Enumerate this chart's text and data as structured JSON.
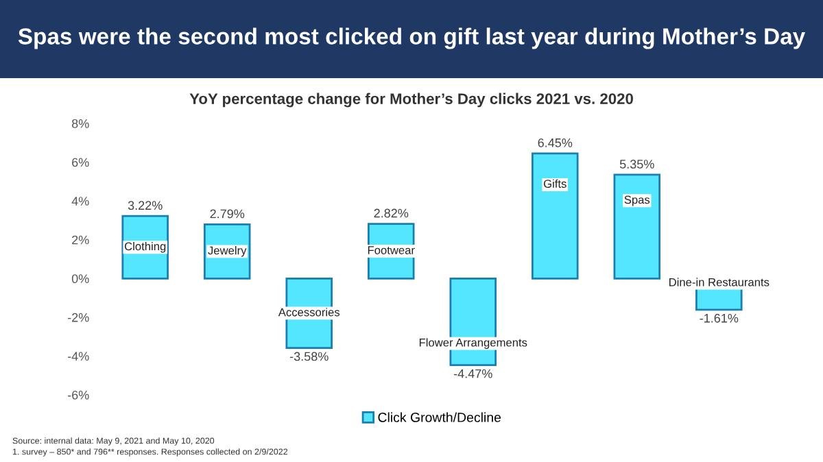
{
  "chart_data": {
    "type": "bar",
    "title": "Spas were the second most clicked on gift last year during Mother’s Day",
    "subtitle": "YoY percentage change for Mother’s Day clicks 2021 vs. 2020",
    "categories": [
      "Clothing",
      "Jewelry",
      "Accessories",
      "Footwear",
      "Flower Arrangements",
      "Gifts",
      "Spas",
      "Dine-in Restaurants"
    ],
    "series": [
      {
        "name": "Click Growth/Decline",
        "color": "#55e6ff",
        "values": [
          3.22,
          2.79,
          -3.58,
          2.82,
          -4.47,
          6.45,
          5.35,
          -1.61
        ],
        "value_labels": [
          "3.22%",
          "2.79%",
          "-3.58%",
          "2.82%",
          "-4.47%",
          "6.45%",
          "5.35%",
          "-1.61%"
        ]
      }
    ],
    "ylim": [
      -6,
      8
    ],
    "yticks": [
      {
        "value": -6,
        "label": "-6%"
      },
      {
        "value": -4,
        "label": "-4%"
      },
      {
        "value": -2,
        "label": "-2%"
      },
      {
        "value": 0,
        "label": "0%"
      },
      {
        "value": 2,
        "label": "2%"
      },
      {
        "value": 4,
        "label": "4%"
      },
      {
        "value": 6,
        "label": "6%"
      },
      {
        "value": 8,
        "label": "8%"
      }
    ],
    "tick_labels": "y",
    "grid": false,
    "legend": "bottom",
    "annotations": [
      "Source: internal data: May 9, 2021 and May 10, 2020",
      "1. survey – 850* and 796** responses. Responses collected on 2/9/2022"
    ]
  }
}
